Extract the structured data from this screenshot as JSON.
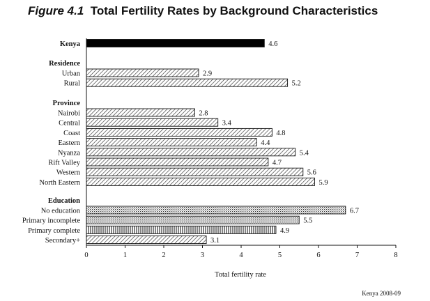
{
  "title": {
    "figure_label": "Figure 4.1",
    "text": "Total Fertility Rates by Background Characteristics"
  },
  "source_note": "Kenya 2008-09",
  "chart_data": {
    "type": "bar",
    "orientation": "horizontal",
    "xlabel": "Total fertility rate",
    "xlim": [
      0,
      8
    ],
    "xticks": [
      0,
      1,
      2,
      3,
      4,
      5,
      6,
      7,
      8
    ],
    "grid": false,
    "groups": [
      {
        "heading": "",
        "rows": [
          {
            "label": "Kenya",
            "value": 4.6,
            "value_label": "4.6",
            "bold": true,
            "fill": "solid"
          }
        ]
      },
      {
        "heading": "Residence",
        "rows": [
          {
            "label": "Urban",
            "value": 2.9,
            "value_label": "2.9",
            "fill": "hatch"
          },
          {
            "label": "Rural",
            "value": 5.2,
            "value_label": "5.2",
            "fill": "hatch"
          }
        ]
      },
      {
        "heading": "Province",
        "rows": [
          {
            "label": "Nairobi",
            "value": 2.8,
            "value_label": "2.8",
            "fill": "hatch"
          },
          {
            "label": "Central",
            "value": 3.4,
            "value_label": "3.4",
            "fill": "hatch"
          },
          {
            "label": "Coast",
            "value": 4.8,
            "value_label": "4.8",
            "fill": "hatch"
          },
          {
            "label": "Eastern",
            "value": 4.4,
            "value_label": "4.4",
            "fill": "hatch"
          },
          {
            "label": "Nyanza",
            "value": 5.4,
            "value_label": "5.4",
            "fill": "hatch"
          },
          {
            "label": "Rift Valley",
            "value": 4.7,
            "value_label": "4.7",
            "fill": "hatch"
          },
          {
            "label": "Western",
            "value": 5.6,
            "value_label": "5.6",
            "fill": "hatch"
          },
          {
            "label": "North Eastern",
            "value": 5.9,
            "value_label": "5.9",
            "fill": "hatch"
          }
        ]
      },
      {
        "heading": "Education",
        "rows": [
          {
            "label": "No education",
            "value": 6.7,
            "value_label": "6.7",
            "fill": "dots"
          },
          {
            "label": "Primary incomplete",
            "value": 5.5,
            "value_label": "5.5",
            "fill": "dots"
          },
          {
            "label": "Primary complete",
            "value": 4.9,
            "value_label": "4.9",
            "fill": "vlines"
          },
          {
            "label": "Secondary+",
            "value": 3.1,
            "value_label": "3.1",
            "fill": "hatch"
          }
        ]
      }
    ]
  }
}
